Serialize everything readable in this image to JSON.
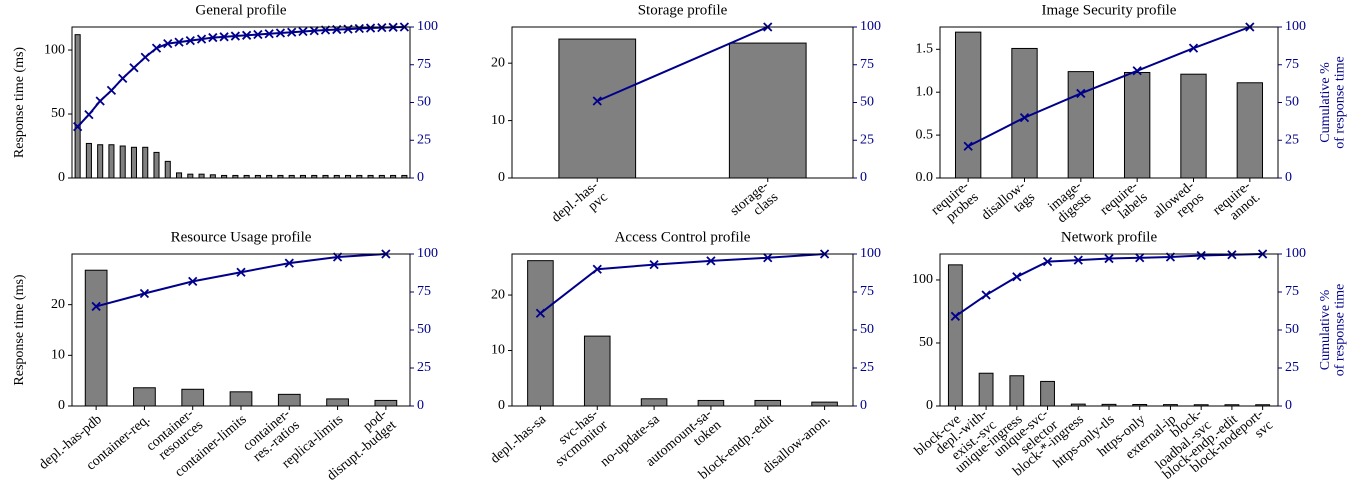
{
  "chart_data": [
    {
      "type": "bar",
      "title": "General profile",
      "ylabel": "Response time (ms)",
      "categories": [
        null,
        null,
        null,
        null,
        null,
        null,
        null,
        null,
        null,
        null,
        null,
        null,
        null,
        null,
        null,
        null,
        null,
        null,
        null,
        null,
        null,
        null,
        null,
        null,
        null,
        null,
        null,
        null,
        null,
        null
      ],
      "series": [
        {
          "color": "#808080",
          "values": [
            112,
            27,
            26,
            26,
            25,
            24,
            24,
            20,
            13,
            4,
            3,
            3,
            2.5,
            2,
            2,
            2,
            2,
            2,
            2,
            2,
            2,
            2,
            2,
            2,
            2,
            2,
            2,
            2,
            2,
            2
          ]
        },
        {
          "color": "#00008b",
          "axis": "y2",
          "values": [
            34,
            42,
            51,
            58,
            66,
            73,
            80,
            86,
            89,
            90,
            91,
            92,
            93,
            93.5,
            94,
            94.5,
            95,
            95.5,
            96,
            96.5,
            97,
            97.5,
            98,
            98.3,
            98.6,
            99,
            99.3,
            99.6,
            99.8,
            100
          ]
        }
      ],
      "ylim": [
        0,
        118
      ],
      "yticks": [
        0,
        50,
        100
      ],
      "y2lim": [
        0,
        100
      ],
      "y2ticks": [
        0,
        25,
        50,
        75,
        100
      ]
    },
    {
      "type": "bar",
      "title": "Storage profile",
      "categories": [
        "depl.-has-\npvc",
        "storage-\nclass"
      ],
      "series": [
        {
          "color": "#808080",
          "values": [
            24.2,
            23.5
          ]
        },
        {
          "color": "#00008b",
          "axis": "y2",
          "values": [
            51,
            100
          ]
        }
      ],
      "ylim": [
        0,
        26.3
      ],
      "yticks": [
        0,
        10,
        20
      ],
      "y2lim": [
        0,
        100
      ],
      "y2ticks": [
        0,
        25,
        50,
        75,
        100
      ]
    },
    {
      "type": "bar",
      "title": "Image Security profile",
      "y2label": "Cumulative %\nof response time",
      "categories": [
        "require-\nprobes",
        "disallow-\ntags",
        "image-\ndigests",
        "require-\nlabels",
        "allowed-\nrepos",
        "require-\nannot."
      ],
      "series": [
        {
          "color": "#808080",
          "values": [
            1.7,
            1.51,
            1.24,
            1.23,
            1.21,
            1.11
          ]
        },
        {
          "color": "#00008b",
          "axis": "y2",
          "values": [
            21,
            40,
            56,
            71,
            86,
            100
          ]
        }
      ],
      "ylim": [
        0,
        1.76
      ],
      "yticks": [
        {
          "value": 0,
          "label": "0.0"
        },
        0.5,
        {
          "value": 1,
          "label": "1.0"
        },
        1.5
      ],
      "y2lim": [
        0,
        100
      ],
      "y2ticks": [
        0,
        25,
        50,
        75,
        100
      ]
    },
    {
      "type": "bar",
      "title": "Resource Usage profile",
      "ylabel": "Response time (ms)",
      "categories": [
        "depl.-has-pdb",
        "container-req.",
        "container-\nresources",
        "container-limits",
        "container-\nres.-ratios",
        "replica-limits",
        "pod-\ndisrupt.-budget"
      ],
      "series": [
        {
          "color": "#808080",
          "values": [
            26.8,
            3.6,
            3.3,
            2.8,
            2.3,
            1.4,
            1.1
          ]
        },
        {
          "color": "#00008b",
          "axis": "y2",
          "values": [
            65.5,
            74,
            82,
            88,
            94,
            98,
            100
          ]
        }
      ],
      "ylim": [
        0,
        30
      ],
      "yticks": [
        0,
        10,
        20
      ],
      "y2lim": [
        0,
        100
      ],
      "y2ticks": [
        0,
        25,
        50,
        75,
        100
      ]
    },
    {
      "type": "bar",
      "title": "Access Control profile",
      "categories": [
        "depl.-has-sa",
        "svc-has-\nsvcmonitor",
        "no-update-sa",
        "automount-sa-\ntoken",
        "block-endp.-edit",
        "disallow-anon."
      ],
      "series": [
        {
          "color": "#808080",
          "values": [
            26.2,
            12.6,
            1.3,
            1.0,
            1.0,
            0.7
          ]
        },
        {
          "color": "#00008b",
          "axis": "y2",
          "values": [
            61,
            90,
            93,
            95.5,
            97.5,
            100
          ]
        }
      ],
      "ylim": [
        0,
        27.4
      ],
      "yticks": [
        0,
        10,
        20
      ],
      "y2lim": [
        0,
        100
      ],
      "y2ticks": [
        0,
        25,
        50,
        75,
        100
      ]
    },
    {
      "type": "bar",
      "title": "Network profile",
      "y2label": "Cumulative %\nof response time",
      "categories": [
        "block-cve",
        "depl.-with-\nexist.-svc",
        "unique-ingress",
        "unique-svc-\nselector",
        "block-*-ingress",
        "https-only-tls",
        "https-only",
        "external-ip",
        "block-\nloadbal.-svc",
        "block-endp.-edit",
        "block-nodeport-\nsvc"
      ],
      "series": [
        {
          "color": "#808080",
          "values": [
            112,
            26,
            24,
            19.5,
            1.5,
            1.3,
            1.2,
            1.1,
            1,
            1,
            1
          ]
        },
        {
          "color": "#00008b",
          "axis": "y2",
          "values": [
            59,
            73,
            85,
            95,
            96,
            97,
            97.5,
            98,
            99,
            99.5,
            100
          ]
        }
      ],
      "ylim": [
        0,
        120.6
      ],
      "yticks": [
        0,
        50,
        100
      ],
      "y2lim": [
        0,
        100
      ],
      "y2ticks": [
        0,
        25,
        50,
        75,
        100
      ]
    }
  ]
}
